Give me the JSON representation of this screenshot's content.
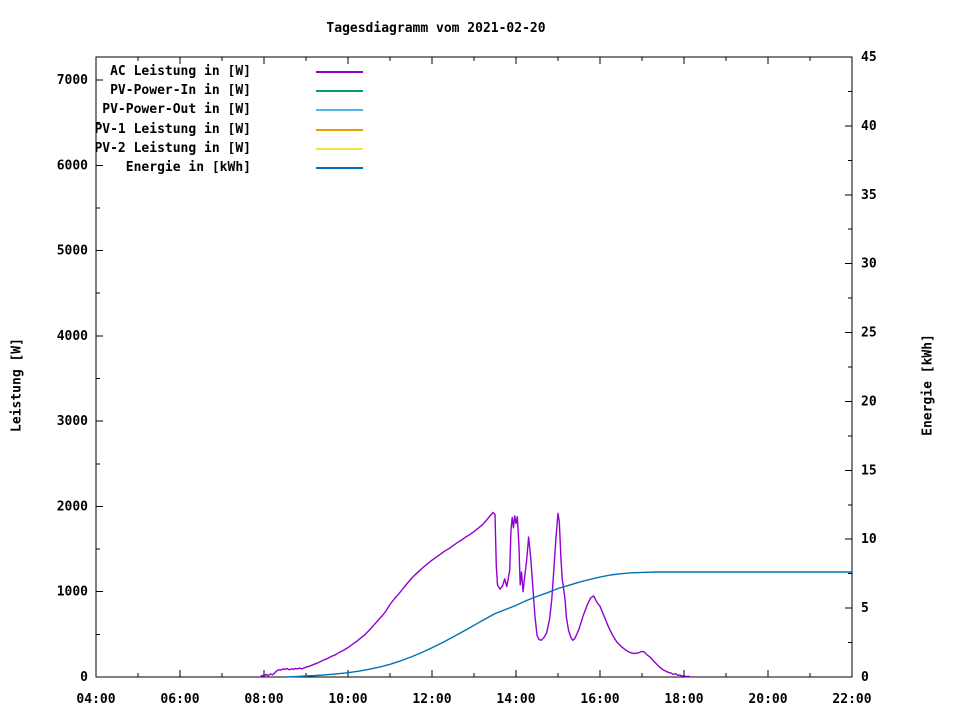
{
  "chart_data": {
    "type": "line",
    "title": "Tagesdiagramm vom 2021-02-20",
    "background": "#ffffff",
    "border_color": "#000000",
    "grid": false,
    "legend_position": "top-left-inside",
    "x_axis": {
      "label": "",
      "range": [
        4,
        22
      ],
      "minor_step_hours": 1,
      "ticks": [
        {
          "h": 4,
          "label": "04:00"
        },
        {
          "h": 6,
          "label": "06:00"
        },
        {
          "h": 8,
          "label": "08:00"
        },
        {
          "h": 10,
          "label": "10:00"
        },
        {
          "h": 12,
          "label": "12:00"
        },
        {
          "h": 14,
          "label": "14:00"
        },
        {
          "h": 16,
          "label": "16:00"
        },
        {
          "h": 18,
          "label": "18:00"
        },
        {
          "h": 20,
          "label": "20:00"
        },
        {
          "h": 22,
          "label": "22:00"
        }
      ]
    },
    "y_left": {
      "label": "Leistung [W]",
      "range": [
        0,
        7270
      ],
      "major_step": 1000,
      "minor_step": 500,
      "ticks": [
        0,
        1000,
        2000,
        3000,
        4000,
        5000,
        6000,
        7000
      ]
    },
    "y_right": {
      "label": "Energie [kWh]",
      "range": [
        0,
        45
      ],
      "major_step": 5,
      "minor_step": 2.5,
      "ticks": [
        0,
        5,
        10,
        15,
        20,
        25,
        30,
        35,
        40,
        45
      ]
    },
    "legend": [
      {
        "label": "AC Leistung in [W]",
        "color": "#9400d3"
      },
      {
        "label": "PV-Power-In in [W]",
        "color": "#009e73"
      },
      {
        "label": "PV-Power-Out in [W]",
        "color": "#56b4e9"
      },
      {
        "label": "PV-1 Leistung in [W]",
        "color": "#e69f00"
      },
      {
        "label": "PV-2 Leistung in [W]",
        "color": "#f0e442"
      },
      {
        "label": "Energie in [kWh]",
        "color": "#0072b2"
      }
    ],
    "series": [
      {
        "name": "AC Leistung in [W]",
        "axis": "left",
        "color": "#9400d3",
        "points": [
          [
            7.92,
            0
          ],
          [
            7.95,
            20
          ],
          [
            8.0,
            8
          ],
          [
            8.05,
            30
          ],
          [
            8.1,
            15
          ],
          [
            8.15,
            35
          ],
          [
            8.2,
            25
          ],
          [
            8.25,
            45
          ],
          [
            8.3,
            70
          ],
          [
            8.35,
            85
          ],
          [
            8.4,
            80
          ],
          [
            8.45,
            95
          ],
          [
            8.5,
            90
          ],
          [
            8.55,
            100
          ],
          [
            8.6,
            85
          ],
          [
            8.65,
            95
          ],
          [
            8.7,
            90
          ],
          [
            8.75,
            100
          ],
          [
            8.8,
            95
          ],
          [
            8.85,
            105
          ],
          [
            8.9,
            95
          ],
          [
            9.0,
            115
          ],
          [
            9.1,
            130
          ],
          [
            9.2,
            150
          ],
          [
            9.3,
            170
          ],
          [
            9.4,
            195
          ],
          [
            9.5,
            215
          ],
          [
            9.6,
            240
          ],
          [
            9.7,
            260
          ],
          [
            9.8,
            290
          ],
          [
            9.9,
            315
          ],
          [
            10.0,
            345
          ],
          [
            10.1,
            380
          ],
          [
            10.2,
            415
          ],
          [
            10.3,
            455
          ],
          [
            10.4,
            495
          ],
          [
            10.5,
            545
          ],
          [
            10.6,
            600
          ],
          [
            10.7,
            655
          ],
          [
            10.8,
            710
          ],
          [
            10.9,
            770
          ],
          [
            11.0,
            850
          ],
          [
            11.1,
            915
          ],
          [
            11.2,
            970
          ],
          [
            11.3,
            1030
          ],
          [
            11.4,
            1090
          ],
          [
            11.5,
            1150
          ],
          [
            11.6,
            1200
          ],
          [
            11.7,
            1245
          ],
          [
            11.8,
            1290
          ],
          [
            11.9,
            1330
          ],
          [
            12.0,
            1370
          ],
          [
            12.1,
            1405
          ],
          [
            12.2,
            1440
          ],
          [
            12.3,
            1475
          ],
          [
            12.4,
            1505
          ],
          [
            12.5,
            1540
          ],
          [
            12.6,
            1575
          ],
          [
            12.7,
            1605
          ],
          [
            12.8,
            1640
          ],
          [
            12.9,
            1670
          ],
          [
            13.0,
            1705
          ],
          [
            13.1,
            1745
          ],
          [
            13.2,
            1785
          ],
          [
            13.3,
            1840
          ],
          [
            13.4,
            1900
          ],
          [
            13.45,
            1930
          ],
          [
            13.5,
            1905
          ],
          [
            13.53,
            1300
          ],
          [
            13.56,
            1080
          ],
          [
            13.62,
            1030
          ],
          [
            13.68,
            1070
          ],
          [
            13.73,
            1150
          ],
          [
            13.78,
            1060
          ],
          [
            13.85,
            1250
          ],
          [
            13.88,
            1720
          ],
          [
            13.91,
            1870
          ],
          [
            13.94,
            1750
          ],
          [
            13.97,
            1890
          ],
          [
            14.0,
            1800
          ],
          [
            14.03,
            1880
          ],
          [
            14.07,
            1550
          ],
          [
            14.1,
            1080
          ],
          [
            14.13,
            1230
          ],
          [
            14.17,
            1000
          ],
          [
            14.2,
            1150
          ],
          [
            14.25,
            1350
          ],
          [
            14.3,
            1640
          ],
          [
            14.35,
            1400
          ],
          [
            14.4,
            1060
          ],
          [
            14.45,
            720
          ],
          [
            14.5,
            490
          ],
          [
            14.55,
            440
          ],
          [
            14.6,
            430
          ],
          [
            14.67,
            465
          ],
          [
            14.73,
            520
          ],
          [
            14.8,
            680
          ],
          [
            14.85,
            900
          ],
          [
            14.9,
            1250
          ],
          [
            14.95,
            1620
          ],
          [
            15.0,
            1920
          ],
          [
            15.03,
            1820
          ],
          [
            15.07,
            1400
          ],
          [
            15.1,
            1150
          ],
          [
            15.13,
            1050
          ],
          [
            15.17,
            900
          ],
          [
            15.2,
            700
          ],
          [
            15.25,
            550
          ],
          [
            15.3,
            470
          ],
          [
            15.35,
            430
          ],
          [
            15.4,
            450
          ],
          [
            15.5,
            560
          ],
          [
            15.6,
            720
          ],
          [
            15.7,
            850
          ],
          [
            15.78,
            930
          ],
          [
            15.85,
            950
          ],
          [
            15.9,
            900
          ],
          [
            15.95,
            860
          ],
          [
            16.0,
            830
          ],
          [
            16.1,
            710
          ],
          [
            16.2,
            590
          ],
          [
            16.3,
            490
          ],
          [
            16.4,
            410
          ],
          [
            16.5,
            360
          ],
          [
            16.6,
            320
          ],
          [
            16.7,
            290
          ],
          [
            16.8,
            275
          ],
          [
            16.9,
            280
          ],
          [
            17.0,
            300
          ],
          [
            17.05,
            295
          ],
          [
            17.1,
            270
          ],
          [
            17.2,
            230
          ],
          [
            17.3,
            175
          ],
          [
            17.4,
            125
          ],
          [
            17.5,
            85
          ],
          [
            17.6,
            60
          ],
          [
            17.7,
            45
          ],
          [
            17.75,
            30
          ],
          [
            17.8,
            40
          ],
          [
            17.85,
            20
          ],
          [
            17.9,
            25
          ],
          [
            17.95,
            10
          ],
          [
            18.0,
            15
          ],
          [
            18.05,
            5
          ],
          [
            18.1,
            8
          ],
          [
            18.17,
            0
          ]
        ]
      },
      {
        "name": "PV-Power-In in [W]",
        "axis": "left",
        "color": "#009e73",
        "points": []
      },
      {
        "name": "PV-Power-Out in [W]",
        "axis": "left",
        "color": "#56b4e9",
        "points": []
      },
      {
        "name": "PV-1 Leistung in [W]",
        "axis": "left",
        "color": "#e69f00",
        "points": []
      },
      {
        "name": "PV-2 Leistung in [W]",
        "axis": "left",
        "color": "#f0e442",
        "points": []
      },
      {
        "name": "Energie in [kWh]",
        "axis": "right",
        "color": "#0072b2",
        "points": [
          [
            8.5,
            0
          ],
          [
            8.75,
            0.03
          ],
          [
            9.0,
            0.07
          ],
          [
            9.25,
            0.11
          ],
          [
            9.5,
            0.17
          ],
          [
            9.75,
            0.23
          ],
          [
            10.0,
            0.31
          ],
          [
            10.25,
            0.42
          ],
          [
            10.5,
            0.56
          ],
          [
            10.75,
            0.72
          ],
          [
            11.0,
            0.92
          ],
          [
            11.25,
            1.17
          ],
          [
            11.5,
            1.45
          ],
          [
            11.75,
            1.77
          ],
          [
            12.0,
            2.12
          ],
          [
            12.25,
            2.5
          ],
          [
            12.5,
            2.9
          ],
          [
            12.75,
            3.32
          ],
          [
            13.0,
            3.75
          ],
          [
            13.25,
            4.18
          ],
          [
            13.5,
            4.6
          ],
          [
            13.75,
            4.9
          ],
          [
            14.0,
            5.2
          ],
          [
            14.25,
            5.55
          ],
          [
            14.5,
            5.85
          ],
          [
            14.75,
            6.12
          ],
          [
            15.0,
            6.42
          ],
          [
            15.25,
            6.65
          ],
          [
            15.5,
            6.88
          ],
          [
            15.75,
            7.08
          ],
          [
            16.0,
            7.25
          ],
          [
            16.25,
            7.4
          ],
          [
            16.5,
            7.5
          ],
          [
            16.75,
            7.56
          ],
          [
            17.0,
            7.59
          ],
          [
            17.2,
            7.61
          ],
          [
            17.35,
            7.62
          ],
          [
            18.0,
            7.62
          ],
          [
            19.0,
            7.62
          ],
          [
            20.0,
            7.62
          ],
          [
            21.0,
            7.62
          ],
          [
            22.0,
            7.62
          ]
        ]
      }
    ]
  }
}
